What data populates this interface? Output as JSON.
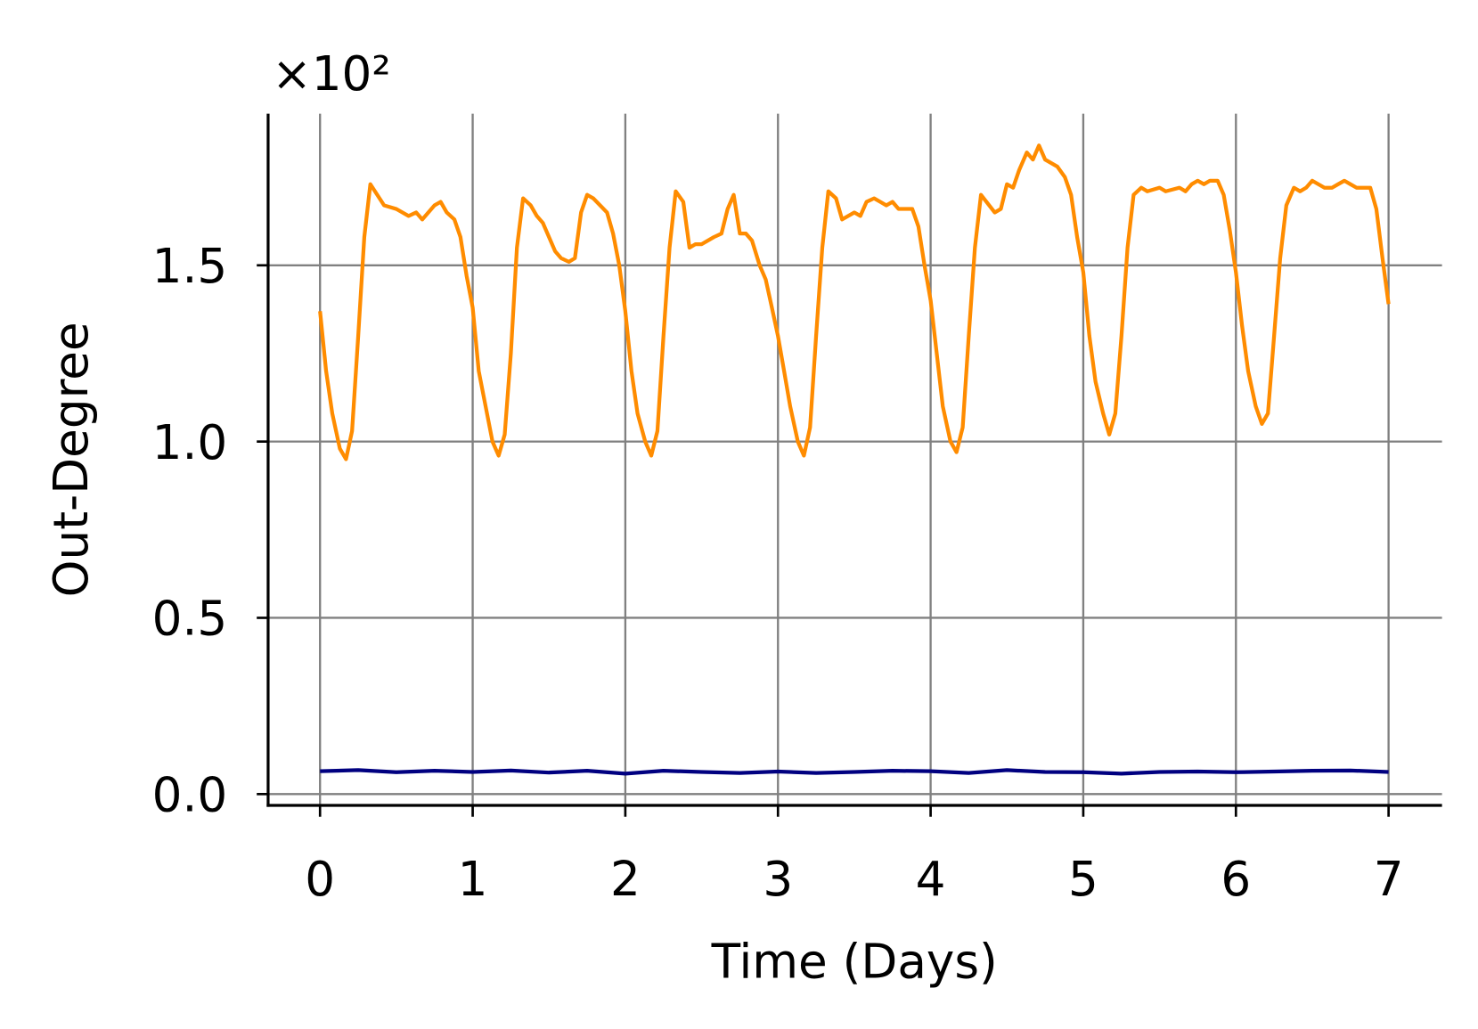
{
  "chart_data": {
    "type": "line",
    "xlabel": "Time (Days)",
    "ylabel": "Out-Degree",
    "y_offset_label": "×10²",
    "xlim": [
      -0.34,
      7.35
    ],
    "ylim": [
      -0.032,
      1.93
    ],
    "xticks": [
      0,
      1,
      2,
      3,
      4,
      5,
      6,
      7
    ],
    "yticks": [
      {
        "value": 0,
        "label": "0.0"
      },
      0.5,
      {
        "value": 1,
        "label": "1.0"
      },
      1.5
    ],
    "grid": true,
    "series": [
      {
        "color": "#ff8c00",
        "x": [
          0,
          0.04,
          0.08,
          0.13,
          0.17,
          0.21,
          0.25,
          0.29,
          0.33,
          0.42,
          0.5,
          0.58,
          0.63,
          0.67,
          0.75,
          0.79,
          0.83,
          0.88,
          0.92,
          0.96,
          1.0,
          1.04,
          1.13,
          1.17,
          1.21,
          1.25,
          1.29,
          1.33,
          1.38,
          1.42,
          1.46,
          1.54,
          1.58,
          1.63,
          1.67,
          1.71,
          1.75,
          1.79,
          1.88,
          1.92,
          1.96,
          2.0,
          2.04,
          2.08,
          2.13,
          2.17,
          2.21,
          2.25,
          2.29,
          2.33,
          2.38,
          2.42,
          2.46,
          2.5,
          2.58,
          2.63,
          2.67,
          2.71,
          2.75,
          2.79,
          2.83,
          2.88,
          2.92,
          2.96,
          3.0,
          3.04,
          3.08,
          3.13,
          3.17,
          3.21,
          3.25,
          3.29,
          3.33,
          3.38,
          3.42,
          3.5,
          3.54,
          3.58,
          3.63,
          3.67,
          3.71,
          3.75,
          3.79,
          3.88,
          3.92,
          3.96,
          4.0,
          4.04,
          4.08,
          4.13,
          4.17,
          4.21,
          4.25,
          4.29,
          4.33,
          4.42,
          4.46,
          4.5,
          4.54,
          4.58,
          4.63,
          4.67,
          4.71,
          4.75,
          4.83,
          4.88,
          4.92,
          4.96,
          5.0,
          5.04,
          5.08,
          5.13,
          5.17,
          5.21,
          5.25,
          5.29,
          5.33,
          5.38,
          5.42,
          5.5,
          5.54,
          5.63,
          5.67,
          5.71,
          5.75,
          5.79,
          5.83,
          5.88,
          5.92,
          5.96,
          6.0,
          6.04,
          6.08,
          6.13,
          6.17,
          6.21,
          6.25,
          6.29,
          6.33,
          6.38,
          6.42,
          6.46,
          6.5,
          6.58,
          6.63,
          6.67,
          6.71,
          6.75,
          6.79,
          6.88,
          6.92,
          6.96,
          7.0
        ],
        "values": [
          1.37,
          1.2,
          1.08,
          0.98,
          0.95,
          1.03,
          1.3,
          1.58,
          1.73,
          1.67,
          1.66,
          1.64,
          1.65,
          1.63,
          1.67,
          1.68,
          1.65,
          1.63,
          1.58,
          1.47,
          1.38,
          1.2,
          1.0,
          0.96,
          1.02,
          1.25,
          1.55,
          1.69,
          1.67,
          1.64,
          1.62,
          1.54,
          1.52,
          1.51,
          1.52,
          1.65,
          1.7,
          1.69,
          1.65,
          1.59,
          1.5,
          1.37,
          1.2,
          1.08,
          1.0,
          0.96,
          1.03,
          1.3,
          1.55,
          1.71,
          1.68,
          1.55,
          1.56,
          1.56,
          1.58,
          1.59,
          1.66,
          1.7,
          1.59,
          1.59,
          1.57,
          1.5,
          1.46,
          1.38,
          1.3,
          1.2,
          1.1,
          1.0,
          0.96,
          1.04,
          1.3,
          1.55,
          1.71,
          1.69,
          1.63,
          1.65,
          1.64,
          1.68,
          1.69,
          1.68,
          1.67,
          1.68,
          1.66,
          1.66,
          1.61,
          1.5,
          1.4,
          1.25,
          1.1,
          1.0,
          0.97,
          1.04,
          1.3,
          1.55,
          1.7,
          1.65,
          1.66,
          1.73,
          1.72,
          1.77,
          1.82,
          1.8,
          1.84,
          1.8,
          1.78,
          1.75,
          1.7,
          1.58,
          1.48,
          1.3,
          1.17,
          1.08,
          1.02,
          1.08,
          1.3,
          1.55,
          1.7,
          1.72,
          1.71,
          1.72,
          1.71,
          1.72,
          1.71,
          1.73,
          1.74,
          1.73,
          1.74,
          1.74,
          1.7,
          1.6,
          1.48,
          1.33,
          1.2,
          1.1,
          1.05,
          1.08,
          1.3,
          1.52,
          1.67,
          1.72,
          1.71,
          1.72,
          1.74,
          1.72,
          1.72,
          1.73,
          1.74,
          1.73,
          1.72,
          1.72,
          1.66,
          1.52,
          1.39
        ]
      },
      {
        "color": "#000080",
        "x": [
          0,
          0.25,
          0.5,
          0.75,
          1.0,
          1.25,
          1.5,
          1.75,
          2.0,
          2.25,
          2.5,
          2.75,
          3.0,
          3.25,
          3.5,
          3.75,
          4.0,
          4.25,
          4.5,
          4.75,
          5.0,
          5.25,
          5.5,
          5.75,
          6.0,
          6.25,
          6.5,
          6.75,
          7.0
        ],
        "values": [
          0.065,
          0.068,
          0.062,
          0.066,
          0.063,
          0.067,
          0.061,
          0.066,
          0.058,
          0.066,
          0.063,
          0.06,
          0.064,
          0.06,
          0.063,
          0.066,
          0.065,
          0.06,
          0.068,
          0.063,
          0.062,
          0.058,
          0.063,
          0.064,
          0.062,
          0.064,
          0.066,
          0.067,
          0.063
        ]
      }
    ]
  }
}
